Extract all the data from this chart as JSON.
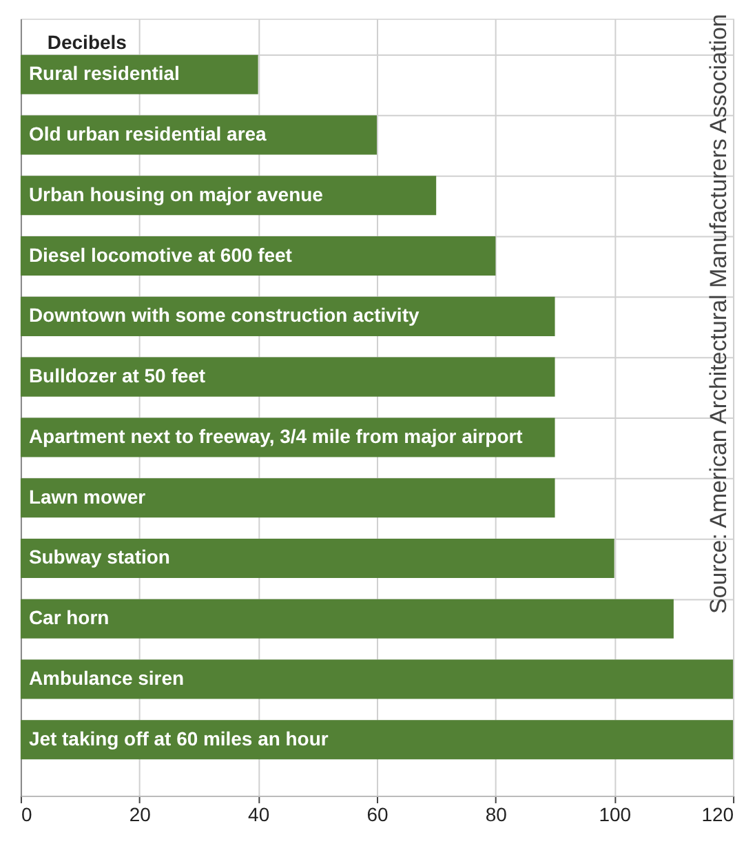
{
  "chart_data": {
    "type": "bar",
    "orientation": "horizontal",
    "xlabel": "Decibels",
    "categories": [
      "Rural residential",
      "Old urban residential area",
      "Urban housing on major avenue",
      "Diesel locomotive at 600 feet",
      "Downtown with some construction activity",
      "Bulldozer at 50 feet",
      "Apartment next to freeway, 3/4 mile from major airport",
      "Lawn mower",
      "Subway station",
      "Car horn",
      "Ambulance siren",
      "Jet taking off at 60 miles an hour"
    ],
    "values": [
      40,
      60,
      70,
      80,
      90,
      90,
      90,
      90,
      100,
      110,
      120,
      120
    ],
    "color": "#538135",
    "xlim": [
      0,
      120
    ],
    "xticks": [
      0,
      20,
      40,
      60,
      80,
      100,
      120
    ],
    "grid": true,
    "annotations": [
      "Source: American Architectural Manufacturers Association"
    ]
  }
}
